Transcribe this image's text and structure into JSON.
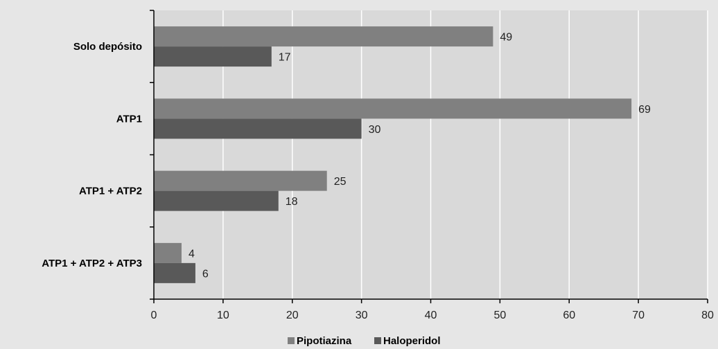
{
  "chart_data": {
    "type": "bar",
    "orientation": "horizontal",
    "categories": [
      "Solo depósito",
      "ATP1",
      "ATP1 + ATP2",
      "ATP1 + ATP2 + ATP3"
    ],
    "series": [
      {
        "name": "Pipotiazina",
        "values": [
          49,
          69,
          25,
          4
        ],
        "color": "#808080"
      },
      {
        "name": "Haloperidol",
        "values": [
          17,
          30,
          18,
          6
        ],
        "color": "#595959"
      }
    ],
    "xlim": [
      0,
      80
    ],
    "xticks": [
      0,
      10,
      20,
      30,
      40,
      50,
      60,
      70,
      80
    ],
    "grid": true,
    "legend_position": "bottom-center",
    "plot_background": "#d9d9d9",
    "gridline_color": "#ffffff"
  }
}
